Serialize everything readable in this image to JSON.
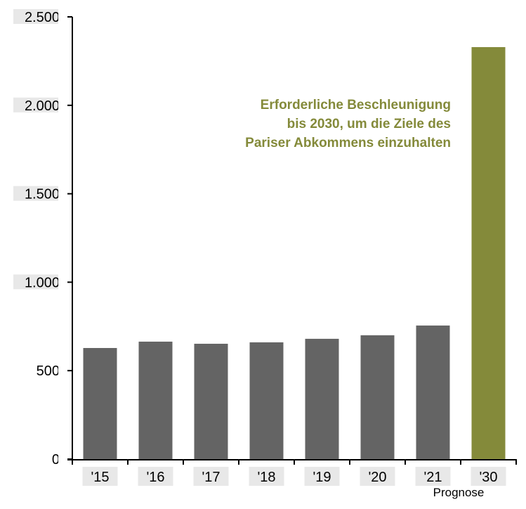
{
  "chart_data": {
    "type": "bar",
    "categories": [
      "'15",
      "'16",
      "'17",
      "'18",
      "'19",
      "'20",
      "'21",
      "'30"
    ],
    "values": [
      628,
      664,
      652,
      660,
      680,
      700,
      755,
      2329
    ],
    "bar_colors": [
      "#646464",
      "#646464",
      "#646464",
      "#646464",
      "#646464",
      "#646464",
      "#646464",
      "#848a3a"
    ],
    "ylim": [
      0,
      2500
    ],
    "yticks": [
      0,
      500,
      1000,
      1500,
      2000,
      2500
    ],
    "ytick_labels": [
      "0",
      "500",
      "1.000",
      "1.500",
      "2.000",
      "2.500"
    ],
    "grid": false,
    "annotation": {
      "lines": [
        "Erforderliche Beschleunigung",
        "bis 2030, um die Ziele des",
        "Pariser Abkommens einzuhalten"
      ],
      "color": "#848a3a"
    },
    "sublabel": "Prognose",
    "label_box_color": "#e8e8e8"
  }
}
